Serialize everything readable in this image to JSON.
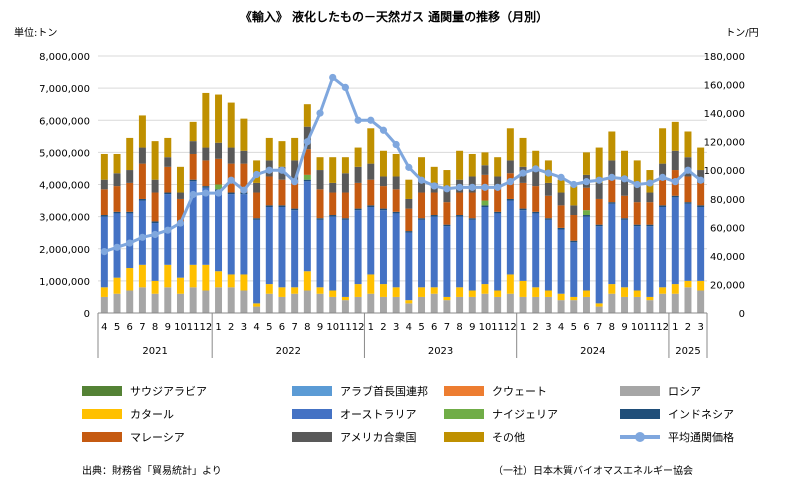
{
  "chart_data": {
    "type": "bar",
    "title": "《輸入》 液化したもの－天然ガス 通関量の推移（月別）",
    "ylabel_left": "単位:トン",
    "ylabel_right": "トン/円",
    "ylim": [
      0,
      8000000
    ],
    "y2lim": [
      0,
      180000
    ],
    "y_ticks": [
      "0",
      "1,000,000",
      "2,000,000",
      "3,000,000",
      "4,000,000",
      "5,000,000",
      "6,000,000",
      "7,000,000",
      "8,000,000"
    ],
    "y2_ticks": [
      "0",
      "20,000",
      "40,000",
      "60,000",
      "80,000",
      "100,000",
      "120,000",
      "140,000",
      "160,000",
      "180,000"
    ],
    "categories": [
      "4",
      "5",
      "6",
      "7",
      "8",
      "9",
      "10",
      "11",
      "12",
      "1",
      "2",
      "3",
      "4",
      "5",
      "6",
      "7",
      "8",
      "9",
      "10",
      "11",
      "12",
      "1",
      "2",
      "3",
      "4",
      "5",
      "6",
      "7",
      "8",
      "9",
      "10",
      "11",
      "12",
      "1",
      "2",
      "3",
      "4",
      "5",
      "6",
      "7",
      "8",
      "9",
      "10",
      "11",
      "12",
      "1",
      "2",
      "3"
    ],
    "years": [
      {
        "label": "2021",
        "start": 0,
        "end": 8
      },
      {
        "label": "2022",
        "start": 9,
        "end": 20
      },
      {
        "label": "2023",
        "start": 21,
        "end": 32
      },
      {
        "label": "2024",
        "start": 33,
        "end": 44
      },
      {
        "label": "2025",
        "start": 45,
        "end": 47
      }
    ],
    "series": [
      {
        "name": "ロシア",
        "color": "#a6a6a6",
        "values": [
          500000,
          600000,
          700000,
          800000,
          600000,
          800000,
          600000,
          800000,
          700000,
          800000,
          800000,
          700000,
          200000,
          600000,
          500000,
          600000,
          700000,
          600000,
          500000,
          400000,
          500000,
          600000,
          500000,
          500000,
          300000,
          500000,
          600000,
          400000,
          500000,
          500000,
          600000,
          500000,
          600000,
          500000,
          500000,
          500000,
          400000,
          400000,
          500000,
          200000,
          600000,
          500000,
          500000,
          400000,
          600000,
          600000,
          800000,
          700000
        ]
      },
      {
        "name": "カタール",
        "color": "#ffc000",
        "values": [
          300000,
          500000,
          700000,
          700000,
          400000,
          700000,
          500000,
          700000,
          800000,
          500000,
          400000,
          500000,
          100000,
          300000,
          300000,
          200000,
          600000,
          200000,
          200000,
          100000,
          400000,
          600000,
          400000,
          300000,
          100000,
          300000,
          200000,
          100000,
          300000,
          200000,
          300000,
          200000,
          600000,
          500000,
          300000,
          200000,
          200000,
          100000,
          200000,
          100000,
          300000,
          300000,
          200000,
          100000,
          200000,
          300000,
          200000,
          300000
        ]
      },
      {
        "name": "オーストラリア",
        "color": "#4472c4",
        "values": [
          2200000,
          2000000,
          1700000,
          2000000,
          1800000,
          2200000,
          1700000,
          2600000,
          2400000,
          2500000,
          2500000,
          2500000,
          2600000,
          2400000,
          2500000,
          2400000,
          2800000,
          2100000,
          2300000,
          2400000,
          2300000,
          2100000,
          2300000,
          2300000,
          2100000,
          2100000,
          2200000,
          2200000,
          2200000,
          2200000,
          2400000,
          2400000,
          2300000,
          2200000,
          2300000,
          2200000,
          2000000,
          1700000,
          2300000,
          2400000,
          2500000,
          2100000,
          2000000,
          2200000,
          2500000,
          2700000,
          2400000,
          2300000
        ]
      },
      {
        "name": "インドネシア",
        "color": "#1f4e79",
        "values": [
          50000,
          50000,
          50000,
          50000,
          50000,
          50000,
          50000,
          50000,
          50000,
          50000,
          50000,
          50000,
          50000,
          50000,
          50000,
          50000,
          50000,
          50000,
          50000,
          50000,
          50000,
          50000,
          50000,
          50000,
          50000,
          50000,
          50000,
          50000,
          50000,
          50000,
          50000,
          50000,
          50000,
          50000,
          50000,
          50000,
          50000,
          50000,
          50000,
          50000,
          50000,
          50000,
          50000,
          50000,
          50000,
          50000,
          50000,
          50000
        ]
      },
      {
        "name": "ナイジェリア",
        "color": "#70ad47",
        "values": [
          0,
          0,
          0,
          0,
          0,
          0,
          0,
          0,
          0,
          150000,
          0,
          0,
          0,
          0,
          0,
          0,
          150000,
          0,
          0,
          0,
          0,
          0,
          0,
          0,
          0,
          0,
          0,
          0,
          0,
          0,
          150000,
          0,
          0,
          0,
          0,
          0,
          0,
          0,
          150000,
          0,
          0,
          0,
          0,
          0,
          0,
          0,
          0,
          0
        ]
      },
      {
        "name": "マレーシア",
        "color": "#c55a11",
        "values": [
          800000,
          800000,
          900000,
          1100000,
          900000,
          800000,
          700000,
          800000,
          800000,
          800000,
          900000,
          900000,
          800000,
          900000,
          800000,
          800000,
          800000,
          900000,
          700000,
          800000,
          800000,
          800000,
          700000,
          700000,
          700000,
          800000,
          700000,
          700000,
          700000,
          800000,
          800000,
          800000,
          800000,
          800000,
          800000,
          700000,
          700000,
          800000,
          700000,
          800000,
          800000,
          700000,
          700000,
          700000,
          800000,
          800000,
          800000,
          700000
        ]
      },
      {
        "name": "アメリカ合衆国",
        "color": "#595959",
        "values": [
          300000,
          400000,
          400000,
          500000,
          400000,
          300000,
          200000,
          400000,
          400000,
          500000,
          500000,
          400000,
          300000,
          500000,
          400000,
          700000,
          700000,
          600000,
          300000,
          600000,
          500000,
          500000,
          300000,
          400000,
          300000,
          400000,
          300000,
          400000,
          400000,
          500000,
          300000,
          300000,
          400000,
          500000,
          500000,
          400000,
          400000,
          300000,
          400000,
          500000,
          500000,
          600000,
          500000,
          300000,
          500000,
          600000,
          600000,
          400000
        ]
      },
      {
        "name": "その他",
        "color": "#bf9000",
        "values": [
          800000,
          600000,
          1000000,
          1000000,
          1200000,
          600000,
          800000,
          600000,
          1700000,
          1500000,
          1400000,
          1000000,
          700000,
          700000,
          800000,
          700000,
          700000,
          400000,
          800000,
          500000,
          600000,
          1100000,
          800000,
          700000,
          600000,
          700000,
          500000,
          600000,
          900000,
          700000,
          400000,
          600000,
          1000000,
          900000,
          600000,
          700000,
          400000,
          600000,
          700000,
          1100000,
          900000,
          800000,
          800000,
          700000,
          1100000,
          900000,
          800000,
          700000
        ]
      },
      {
        "name": "アラブ首長国連邦",
        "color": "#5b9bd5",
        "values": [
          0,
          0,
          0,
          0,
          0,
          0,
          0,
          0,
          0,
          0,
          0,
          0,
          0,
          0,
          0,
          0,
          0,
          0,
          0,
          0,
          0,
          0,
          0,
          0,
          0,
          0,
          0,
          0,
          0,
          0,
          0,
          0,
          0,
          0,
          0,
          0,
          0,
          0,
          0,
          0,
          0,
          0,
          0,
          0,
          0,
          0,
          0,
          0
        ]
      },
      {
        "name": "クウェート",
        "color": "#ed7d31",
        "values": [
          0,
          0,
          0,
          0,
          0,
          0,
          0,
          0,
          0,
          0,
          0,
          0,
          0,
          0,
          0,
          0,
          0,
          0,
          0,
          0,
          0,
          0,
          0,
          0,
          0,
          0,
          0,
          0,
          0,
          0,
          0,
          0,
          0,
          0,
          0,
          0,
          0,
          0,
          0,
          0,
          0,
          0,
          0,
          0,
          0,
          0,
          0,
          0
        ]
      }
    ],
    "line_series": {
      "name": "平均通関価格",
      "color": "#7fa7de",
      "values": [
        43000,
        46000,
        49000,
        53000,
        55000,
        58000,
        63000,
        83000,
        84000,
        84000,
        93000,
        86000,
        97000,
        100000,
        100000,
        92000,
        120000,
        140000,
        165000,
        158000,
        135000,
        135000,
        128000,
        118000,
        102000,
        93000,
        89000,
        87000,
        88000,
        88000,
        88000,
        88000,
        92000,
        98000,
        101000,
        98000,
        95000,
        90000,
        92000,
        93000,
        95000,
        94000,
        90000,
        91000,
        95000,
        92000,
        100000,
        93000
      ]
    },
    "legend": [
      {
        "name": "サウジアラビア",
        "color": "#548235"
      },
      {
        "name": "アラブ首長国連邦",
        "color": "#5b9bd5"
      },
      {
        "name": "クウェート",
        "color": "#ed7d31"
      },
      {
        "name": "ロシア",
        "color": "#a6a6a6"
      },
      {
        "name": "カタール",
        "color": "#ffc000"
      },
      {
        "name": "オーストラリア",
        "color": "#4472c4"
      },
      {
        "name": "ナイジェリア",
        "color": "#70ad47"
      },
      {
        "name": "インドネシア",
        "color": "#1f4e79"
      },
      {
        "name": "マレーシア",
        "color": "#c55a11"
      },
      {
        "name": "アメリカ合衆国",
        "color": "#595959"
      },
      {
        "name": "その他",
        "color": "#bf9000"
      },
      {
        "name": "平均通関価格",
        "color": "#7fa7de"
      }
    ],
    "grid": true,
    "legend_position": "bottom"
  },
  "footer": {
    "source": "出典：財務省「貿易統計」より",
    "credit": "（一社）日本木質バイオマスエネルギー協会"
  }
}
